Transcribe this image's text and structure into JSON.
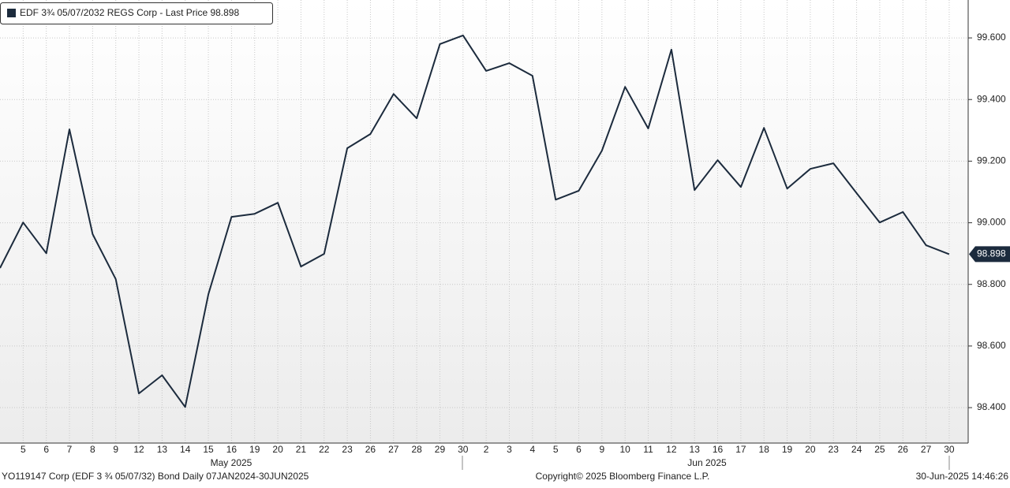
{
  "chart_data": {
    "type": "line",
    "categories": [
      null,
      "5",
      "6",
      "7",
      "8",
      "9",
      "12",
      "13",
      "14",
      "15",
      "16",
      "19",
      "20",
      "21",
      "22",
      "23",
      "26",
      "27",
      "28",
      "29",
      "30",
      "2",
      "3",
      "4",
      "5",
      "6",
      "9",
      "10",
      "11",
      "12",
      "13",
      "16",
      "17",
      "18",
      "19",
      "20",
      "23",
      "24",
      "25",
      "26",
      "27",
      "30"
    ],
    "series": [
      {
        "name": "EDF 3¾  05/07/2032 REGS Corp - Last Price 98.898",
        "color": "#1c2b3d",
        "values": [
          98.853,
          99.001,
          98.901,
          99.303,
          98.963,
          98.817,
          98.446,
          98.505,
          98.402,
          98.768,
          99.019,
          99.029,
          99.065,
          98.858,
          98.899,
          99.242,
          99.288,
          99.418,
          99.339,
          99.58,
          99.608,
          99.493,
          99.518,
          99.477,
          99.075,
          99.104,
          99.234,
          99.441,
          99.306,
          99.562,
          99.106,
          99.203,
          99.116,
          99.308,
          99.111,
          99.175,
          99.193,
          99.096,
          99.001,
          99.035,
          98.927,
          98.898
        ]
      }
    ],
    "ylim": [
      98.285,
      99.723
    ],
    "yticks": [
      {
        "value": 98.4,
        "label": "98.400"
      },
      {
        "value": 98.6,
        "label": "98.600"
      },
      {
        "value": 98.8,
        "label": "98.800"
      },
      {
        "value": 99.0,
        "label": "99.000"
      },
      {
        "value": 99.2,
        "label": "99.200"
      },
      {
        "value": 99.4,
        "label": "99.400"
      },
      {
        "value": 99.6,
        "label": "99.600"
      }
    ],
    "grid": true,
    "annotations": [
      "May 2025",
      "Jun 2025"
    ],
    "footer": {
      "left": "YO119147 Corp (EDF 3 ¾ 05/07/32) Bond  Daily 07JAN2024-30JUN2025",
      "center": "Copyright© 2025 Bloomberg Finance L.P.",
      "right": "30-Jun-2025 14:46:26"
    }
  }
}
